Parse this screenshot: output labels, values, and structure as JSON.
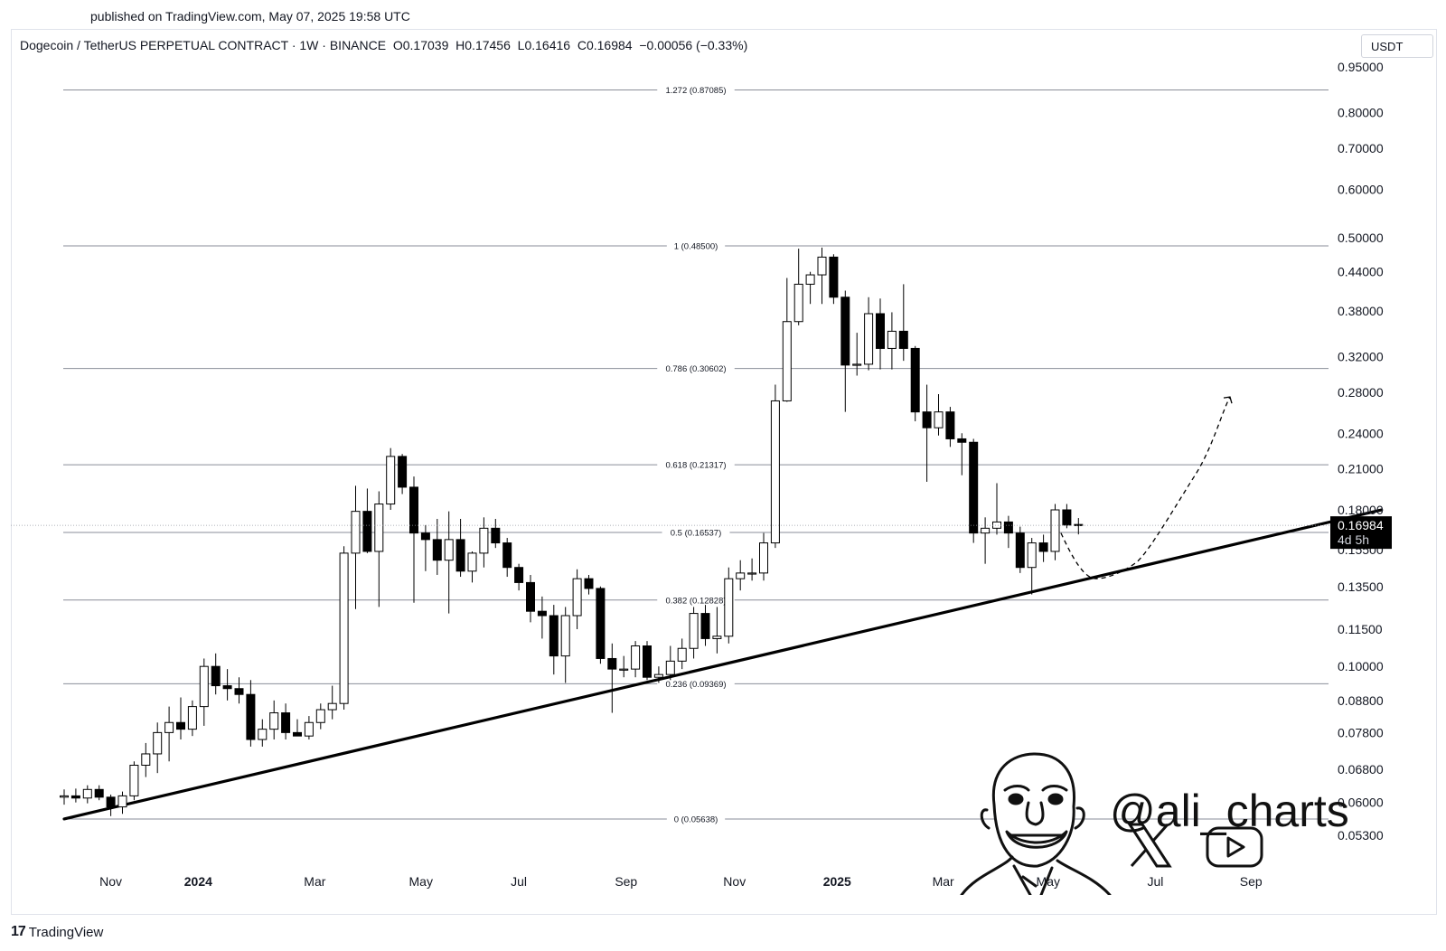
{
  "published": "published on TradingView.com, May 07, 2025 19:58 UTC",
  "header": {
    "symbol": "Dogecoin / TetherUS PERPETUAL CONTRACT · 1W · BINANCE",
    "open_label": "O",
    "open": "0.17039",
    "high_label": "H",
    "high": "0.17456",
    "low_label": "L",
    "low": "0.16416",
    "close_label": "C",
    "close": "0.16984",
    "change": "−0.00056 (−0.33%)"
  },
  "currency": "USDT",
  "footer": {
    "brand": "TradingView",
    "logo": "17"
  },
  "watermark": {
    "handle": "@ali_charts",
    "icons": [
      "avatar-caricature",
      "x-logo-icon",
      "youtube-icon"
    ]
  },
  "chart_data": {
    "type": "candlestick",
    "symbol": "DOGEUSDT.P",
    "timeframe": "1W",
    "y_scale": "log",
    "ylim": [
      0.045,
      1.0
    ],
    "y_ticks": [
      "0.95000",
      "0.80000",
      "0.70000",
      "0.60000",
      "0.50000",
      "0.44000",
      "0.38000",
      "0.32000",
      "0.28000",
      "0.24000",
      "0.21000",
      "0.18000",
      "0.15500",
      "0.13500",
      "0.11500",
      "0.10000",
      "0.08800",
      "0.07800",
      "0.06800",
      "0.06000",
      "0.05300"
    ],
    "x_ticks": [
      {
        "label": "Nov",
        "bold": false
      },
      {
        "label": "2024",
        "bold": true
      },
      {
        "label": "Mar",
        "bold": false
      },
      {
        "label": "May",
        "bold": false
      },
      {
        "label": "Jul",
        "bold": false
      },
      {
        "label": "Sep",
        "bold": false
      },
      {
        "label": "Nov",
        "bold": false
      },
      {
        "label": "2025",
        "bold": true
      },
      {
        "label": "Mar",
        "bold": false
      },
      {
        "label": "May",
        "bold": false
      },
      {
        "label": "Jul",
        "bold": false
      },
      {
        "label": "Sep",
        "bold": false
      }
    ],
    "fib_levels": [
      {
        "label": "1.272 (0.87085)",
        "value": 0.87085
      },
      {
        "label": "1 (0.48500)",
        "value": 0.485
      },
      {
        "label": "0.786 (0.30602)",
        "value": 0.30602
      },
      {
        "label": "0.618 (0.21317)",
        "value": 0.21317
      },
      {
        "label": "0.5 (0.16537)",
        "value": 0.16537
      },
      {
        "label": "0.382 (0.12828)",
        "value": 0.12828
      },
      {
        "label": "0.236 (0.09369)",
        "value": 0.09369
      },
      {
        "label": "0 (0.05638)",
        "value": 0.05638
      }
    ],
    "last_price": {
      "value": "0.16984",
      "countdown": "4d 5h"
    },
    "trendline": [
      {
        "bar": 0,
        "price": 0.0564
      },
      {
        "bar": 113,
        "price": 0.18
      }
    ],
    "projection": [
      {
        "bar": 85.5,
        "price": 0.165
      },
      {
        "bar": 88.5,
        "price": 0.139
      },
      {
        "bar": 92,
        "price": 0.148
      },
      {
        "bar": 97,
        "price": 0.205
      },
      {
        "bar": 100,
        "price": 0.275
      }
    ],
    "candles": [
      {
        "o": 0.0612,
        "h": 0.063,
        "l": 0.0595,
        "c": 0.0615
      },
      {
        "o": 0.0615,
        "h": 0.0632,
        "l": 0.06,
        "c": 0.061
      },
      {
        "o": 0.061,
        "h": 0.064,
        "l": 0.0598,
        "c": 0.063
      },
      {
        "o": 0.063,
        "h": 0.064,
        "l": 0.0605,
        "c": 0.0612
      },
      {
        "o": 0.0612,
        "h": 0.0618,
        "l": 0.057,
        "c": 0.059
      },
      {
        "o": 0.059,
        "h": 0.0625,
        "l": 0.0575,
        "c": 0.0615
      },
      {
        "o": 0.0615,
        "h": 0.07,
        "l": 0.0605,
        "c": 0.069
      },
      {
        "o": 0.069,
        "h": 0.075,
        "l": 0.066,
        "c": 0.072
      },
      {
        "o": 0.072,
        "h": 0.081,
        "l": 0.067,
        "c": 0.078
      },
      {
        "o": 0.078,
        "h": 0.086,
        "l": 0.07,
        "c": 0.081
      },
      {
        "o": 0.081,
        "h": 0.089,
        "l": 0.076,
        "c": 0.079
      },
      {
        "o": 0.079,
        "h": 0.088,
        "l": 0.077,
        "c": 0.086
      },
      {
        "o": 0.086,
        "h": 0.103,
        "l": 0.08,
        "c": 0.1
      },
      {
        "o": 0.1,
        "h": 0.105,
        "l": 0.09,
        "c": 0.093
      },
      {
        "o": 0.093,
        "h": 0.099,
        "l": 0.088,
        "c": 0.092
      },
      {
        "o": 0.092,
        "h": 0.096,
        "l": 0.087,
        "c": 0.09
      },
      {
        "o": 0.09,
        "h": 0.095,
        "l": 0.074,
        "c": 0.076
      },
      {
        "o": 0.076,
        "h": 0.082,
        "l": 0.074,
        "c": 0.079
      },
      {
        "o": 0.079,
        "h": 0.088,
        "l": 0.076,
        "c": 0.084
      },
      {
        "o": 0.084,
        "h": 0.087,
        "l": 0.076,
        "c": 0.078
      },
      {
        "o": 0.078,
        "h": 0.082,
        "l": 0.077,
        "c": 0.077
      },
      {
        "o": 0.077,
        "h": 0.083,
        "l": 0.076,
        "c": 0.081
      },
      {
        "o": 0.081,
        "h": 0.087,
        "l": 0.079,
        "c": 0.085
      },
      {
        "o": 0.085,
        "h": 0.093,
        "l": 0.082,
        "c": 0.087
      },
      {
        "o": 0.087,
        "h": 0.157,
        "l": 0.085,
        "c": 0.153
      },
      {
        "o": 0.153,
        "h": 0.197,
        "l": 0.124,
        "c": 0.179
      },
      {
        "o": 0.179,
        "h": 0.195,
        "l": 0.153,
        "c": 0.154
      },
      {
        "o": 0.154,
        "h": 0.193,
        "l": 0.125,
        "c": 0.184
      },
      {
        "o": 0.184,
        "h": 0.227,
        "l": 0.18,
        "c": 0.22
      },
      {
        "o": 0.22,
        "h": 0.222,
        "l": 0.191,
        "c": 0.196
      },
      {
        "o": 0.196,
        "h": 0.204,
        "l": 0.127,
        "c": 0.165
      },
      {
        "o": 0.165,
        "h": 0.17,
        "l": 0.143,
        "c": 0.161
      },
      {
        "o": 0.161,
        "h": 0.174,
        "l": 0.141,
        "c": 0.149
      },
      {
        "o": 0.149,
        "h": 0.179,
        "l": 0.122,
        "c": 0.161
      },
      {
        "o": 0.161,
        "h": 0.174,
        "l": 0.14,
        "c": 0.143
      },
      {
        "o": 0.143,
        "h": 0.154,
        "l": 0.137,
        "c": 0.153
      },
      {
        "o": 0.153,
        "h": 0.175,
        "l": 0.145,
        "c": 0.168
      },
      {
        "o": 0.168,
        "h": 0.174,
        "l": 0.156,
        "c": 0.159
      },
      {
        "o": 0.159,
        "h": 0.162,
        "l": 0.14,
        "c": 0.145
      },
      {
        "o": 0.145,
        "h": 0.147,
        "l": 0.133,
        "c": 0.137
      },
      {
        "o": 0.137,
        "h": 0.141,
        "l": 0.118,
        "c": 0.123
      },
      {
        "o": 0.123,
        "h": 0.13,
        "l": 0.111,
        "c": 0.121
      },
      {
        "o": 0.121,
        "h": 0.126,
        "l": 0.097,
        "c": 0.104
      },
      {
        "o": 0.104,
        "h": 0.125,
        "l": 0.094,
        "c": 0.121
      },
      {
        "o": 0.121,
        "h": 0.144,
        "l": 0.115,
        "c": 0.139
      },
      {
        "o": 0.139,
        "h": 0.141,
        "l": 0.131,
        "c": 0.134
      },
      {
        "o": 0.134,
        "h": 0.135,
        "l": 0.101,
        "c": 0.103
      },
      {
        "o": 0.103,
        "h": 0.109,
        "l": 0.084,
        "c": 0.099
      },
      {
        "o": 0.099,
        "h": 0.104,
        "l": 0.096,
        "c": 0.099
      },
      {
        "o": 0.099,
        "h": 0.11,
        "l": 0.096,
        "c": 0.108
      },
      {
        "o": 0.108,
        "h": 0.11,
        "l": 0.095,
        "c": 0.096
      },
      {
        "o": 0.096,
        "h": 0.1,
        "l": 0.094,
        "c": 0.097
      },
      {
        "o": 0.097,
        "h": 0.108,
        "l": 0.095,
        "c": 0.102
      },
      {
        "o": 0.102,
        "h": 0.111,
        "l": 0.099,
        "c": 0.107
      },
      {
        "o": 0.107,
        "h": 0.125,
        "l": 0.103,
        "c": 0.122
      },
      {
        "o": 0.122,
        "h": 0.126,
        "l": 0.108,
        "c": 0.111
      },
      {
        "o": 0.111,
        "h": 0.125,
        "l": 0.105,
        "c": 0.112
      },
      {
        "o": 0.112,
        "h": 0.145,
        "l": 0.109,
        "c": 0.139
      },
      {
        "o": 0.139,
        "h": 0.149,
        "l": 0.133,
        "c": 0.142
      },
      {
        "o": 0.142,
        "h": 0.15,
        "l": 0.138,
        "c": 0.142
      },
      {
        "o": 0.142,
        "h": 0.165,
        "l": 0.138,
        "c": 0.159
      },
      {
        "o": 0.159,
        "h": 0.288,
        "l": 0.156,
        "c": 0.271
      },
      {
        "o": 0.271,
        "h": 0.43,
        "l": 0.27,
        "c": 0.365
      },
      {
        "o": 0.365,
        "h": 0.48,
        "l": 0.36,
        "c": 0.42
      },
      {
        "o": 0.42,
        "h": 0.44,
        "l": 0.39,
        "c": 0.435
      },
      {
        "o": 0.435,
        "h": 0.482,
        "l": 0.39,
        "c": 0.465
      },
      {
        "o": 0.465,
        "h": 0.47,
        "l": 0.39,
        "c": 0.4
      },
      {
        "o": 0.4,
        "h": 0.41,
        "l": 0.26,
        "c": 0.31
      },
      {
        "o": 0.31,
        "h": 0.35,
        "l": 0.298,
        "c": 0.311
      },
      {
        "o": 0.311,
        "h": 0.4,
        "l": 0.304,
        "c": 0.376
      },
      {
        "o": 0.376,
        "h": 0.398,
        "l": 0.305,
        "c": 0.33
      },
      {
        "o": 0.33,
        "h": 0.378,
        "l": 0.305,
        "c": 0.352
      },
      {
        "o": 0.352,
        "h": 0.42,
        "l": 0.315,
        "c": 0.33
      },
      {
        "o": 0.33,
        "h": 0.333,
        "l": 0.251,
        "c": 0.26
      },
      {
        "o": 0.26,
        "h": 0.288,
        "l": 0.2,
        "c": 0.245
      },
      {
        "o": 0.245,
        "h": 0.278,
        "l": 0.238,
        "c": 0.26
      },
      {
        "o": 0.26,
        "h": 0.265,
        "l": 0.228,
        "c": 0.235
      },
      {
        "o": 0.235,
        "h": 0.24,
        "l": 0.205,
        "c": 0.232
      },
      {
        "o": 0.232,
        "h": 0.235,
        "l": 0.159,
        "c": 0.165
      },
      {
        "o": 0.165,
        "h": 0.175,
        "l": 0.147,
        "c": 0.168
      },
      {
        "o": 0.168,
        "h": 0.199,
        "l": 0.164,
        "c": 0.172
      },
      {
        "o": 0.172,
        "h": 0.176,
        "l": 0.156,
        "c": 0.165
      },
      {
        "o": 0.165,
        "h": 0.169,
        "l": 0.142,
        "c": 0.145
      },
      {
        "o": 0.145,
        "h": 0.162,
        "l": 0.131,
        "c": 0.159
      },
      {
        "o": 0.159,
        "h": 0.164,
        "l": 0.148,
        "c": 0.154
      },
      {
        "o": 0.154,
        "h": 0.184,
        "l": 0.149,
        "c": 0.18
      },
      {
        "o": 0.18,
        "h": 0.184,
        "l": 0.168,
        "c": 0.17
      },
      {
        "o": 0.17039,
        "h": 0.17456,
        "l": 0.16416,
        "c": 0.16984
      }
    ]
  }
}
